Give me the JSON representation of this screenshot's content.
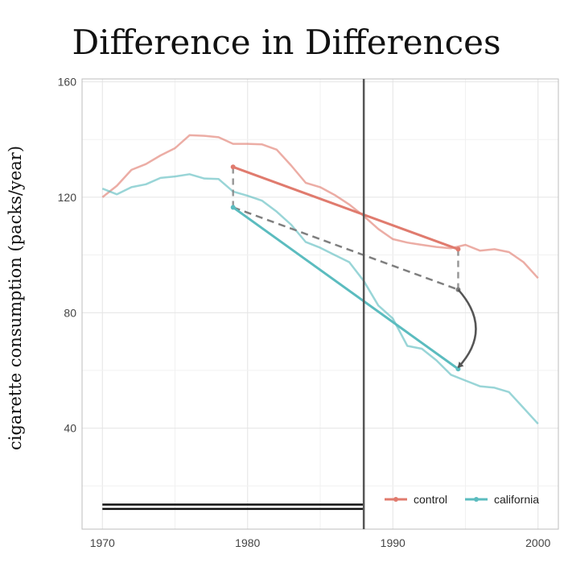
{
  "chart_data": {
    "type": "line",
    "title": "Difference in Differences",
    "xlabel": "",
    "ylabel": "cigarette consumption (packs/year)",
    "xlim": [
      1968.6,
      2001.4
    ],
    "ylim": [
      5,
      161
    ],
    "x_ticks": [
      1970,
      1980,
      1990,
      2000
    ],
    "y_ticks": [
      40,
      80,
      120,
      160
    ],
    "grid": true,
    "legend_position": "bottom-right",
    "colors": {
      "control": "#e07b6e",
      "california": "#5bbcbf",
      "counterfactual": "#7f7f7f",
      "treatment_line": "#555555",
      "pre_period_bar": "#111111"
    },
    "x": [
      1970,
      1971,
      1972,
      1973,
      1974,
      1975,
      1976,
      1977,
      1978,
      1979,
      1980,
      1981,
      1982,
      1983,
      1984,
      1985,
      1986,
      1987,
      1988,
      1989,
      1990,
      1991,
      1992,
      1993,
      1994,
      1995,
      1996,
      1997,
      1998,
      1999,
      2000
    ],
    "series": [
      {
        "name": "control",
        "values": [
          120.0,
          124.0,
          129.5,
          131.5,
          134.5,
          137.0,
          141.5,
          141.3,
          140.8,
          138.5,
          138.5,
          138.3,
          136.5,
          131.0,
          125.0,
          123.5,
          120.8,
          117.5,
          113.5,
          109.0,
          105.5,
          104.3,
          103.5,
          102.8,
          102.3,
          103.5,
          101.5,
          102.0,
          101.0,
          97.5,
          92.0
        ]
      },
      {
        "name": "california",
        "values": [
          123.0,
          121.0,
          123.5,
          124.5,
          126.7,
          127.2,
          128.0,
          126.5,
          126.3,
          122.0,
          120.5,
          118.8,
          115.0,
          110.5,
          104.5,
          102.5,
          100.0,
          97.5,
          91.0,
          82.5,
          78.0,
          68.5,
          67.5,
          63.5,
          58.5,
          56.5,
          54.5,
          54.0,
          52.5,
          47.0,
          41.5
        ]
      }
    ],
    "overlays": {
      "control_trend": {
        "x": [
          1979,
          1994.5
        ],
        "y": [
          130.5,
          102.0
        ]
      },
      "california_trend": {
        "x": [
          1979,
          1994.5
        ],
        "y": [
          116.5,
          60.5
        ]
      },
      "counterfactual_trend": {
        "x": [
          1979,
          1994.5
        ],
        "y": [
          116.5,
          88.0
        ]
      },
      "pre_gap": {
        "x": 1979,
        "y": [
          116.5,
          130.5
        ]
      },
      "post_gap": {
        "x": 1994.5,
        "y": [
          88.0,
          102.0
        ]
      },
      "effect_arrow": {
        "x": 1994.5,
        "from_y": 88.0,
        "to_y": 60.5
      },
      "treatment_year": 1988,
      "pre_period_bar": {
        "x": [
          1970,
          1988
        ],
        "y": [
          13.5,
          12.0
        ]
      }
    }
  }
}
